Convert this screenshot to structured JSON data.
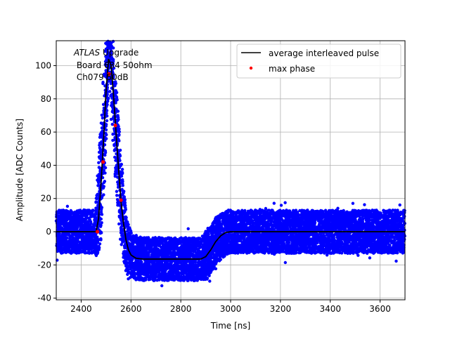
{
  "chart_data": {
    "type": "scatter",
    "xlabel": "Time [ns]",
    "ylabel": "Amplitude [ADC Counts]",
    "xlim": [
      2300,
      3700
    ],
    "ylim": [
      -41,
      115
    ],
    "xticks": [
      2400,
      2600,
      2800,
      3000,
      3200,
      3400,
      3600
    ],
    "yticks": [
      -40,
      -20,
      0,
      20,
      40,
      60,
      80,
      100
    ],
    "grid": true,
    "legend_position": "top-right",
    "annotation": {
      "italic": "ATLAS",
      "line1_rest": " Upgrade",
      "line2": " Board 634 50ohm",
      "line3": " Ch079 50dB"
    },
    "series": [
      {
        "name": "average interleaved pulse",
        "style": "line",
        "color": "#000000",
        "x": [
          2300,
          2420,
          2460,
          2470,
          2480,
          2490,
          2500,
          2510,
          2520,
          2530,
          2540,
          2550,
          2560,
          2570,
          2580,
          2590,
          2600,
          2620,
          2650,
          2700,
          2800,
          2880,
          2900,
          2920,
          2940,
          2960,
          2980,
          3000,
          3100,
          3400,
          3700
        ],
        "y": [
          0,
          0,
          0,
          8,
          30,
          55,
          85,
          104,
          100,
          82,
          60,
          38,
          18,
          5,
          -5,
          -11,
          -14,
          -16,
          -16.5,
          -16.5,
          -16.5,
          -16.5,
          -15,
          -11,
          -6,
          -2.5,
          -0.5,
          0,
          0,
          0,
          0
        ]
      },
      {
        "name": "max phase",
        "style": "markers",
        "color": "#ff0000",
        "x": [
          2465,
          2488,
          2512,
          2537,
          2560
        ],
        "y": [
          0,
          42,
          95,
          64,
          19
        ]
      },
      {
        "name": "",
        "style": "scatter-band",
        "color": "#0000ff",
        "noise_halfwidth": 13,
        "outlier_range": [
          -33,
          20
        ]
      }
    ]
  }
}
